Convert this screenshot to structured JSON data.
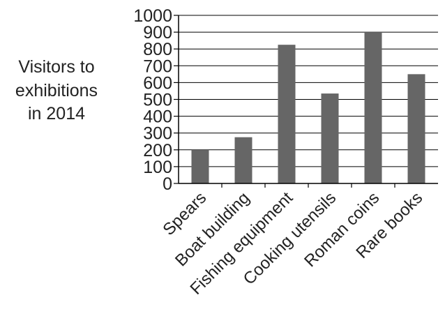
{
  "chart_data": {
    "type": "bar",
    "ylabel_lines": [
      "Visitors to",
      "exhibitions",
      "in 2014"
    ],
    "categories": [
      "Spears",
      "Boat building",
      "Fishing equipment",
      "Cooking utensils",
      "Roman coins",
      "Rare books"
    ],
    "values": [
      200,
      275,
      825,
      535,
      900,
      650
    ],
    "ylim": [
      0,
      1000
    ],
    "yticks": [
      0,
      100,
      200,
      300,
      400,
      500,
      600,
      700,
      800,
      900,
      1000
    ],
    "grid": true,
    "colors": {
      "bar": "#666666",
      "grid": "#000000",
      "text": "#222222"
    }
  }
}
